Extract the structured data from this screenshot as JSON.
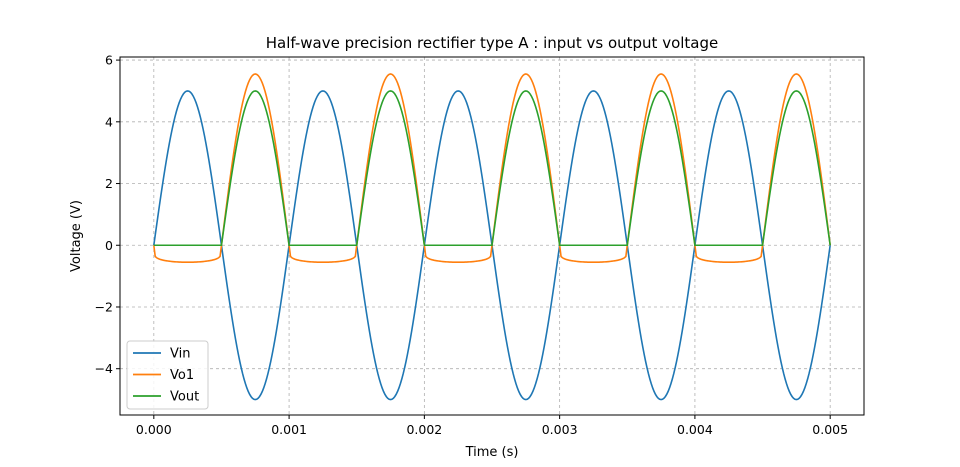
{
  "chart_data": {
    "type": "line",
    "title": "Half-wave precision rectifier type A : input vs output voltage",
    "xlabel": "Time (s)",
    "ylabel": "Voltage (V)",
    "xlim": [
      -0.00025,
      0.00525
    ],
    "ylim": [
      -5.5,
      6.1
    ],
    "grid": true,
    "legend_position": "lower-left",
    "x_ticks": [
      0.0,
      0.001,
      0.002,
      0.003,
      0.004,
      0.005
    ],
    "x_tick_labels": [
      "0.000",
      "0.001",
      "0.002",
      "0.003",
      "0.004",
      "0.005"
    ],
    "y_ticks": [
      -4,
      -2,
      0,
      2,
      4,
      6
    ],
    "y_tick_labels": [
      "−4",
      "−2",
      "0",
      "2",
      "4",
      "6"
    ],
    "x": [
      0.0,
      0.00025,
      0.0005,
      0.00075,
      0.001,
      0.00125,
      0.0015,
      0.00175,
      0.002,
      0.00225,
      0.0025,
      0.00275,
      0.003,
      0.00325,
      0.0035,
      0.00375,
      0.004,
      0.00425,
      0.0045,
      0.00475,
      0.005
    ],
    "series": [
      {
        "name": "Vin",
        "color": "#1f77b4",
        "values": [
          0,
          5,
          0,
          -5,
          0,
          5,
          0,
          -5,
          0,
          5,
          0,
          -5,
          0,
          5,
          0,
          -5,
          0,
          5,
          0,
          -5,
          0
        ]
      },
      {
        "name": "Vo1",
        "color": "#ff7f0e",
        "values": [
          0,
          -0.55,
          0,
          5.55,
          0,
          -0.55,
          0,
          5.55,
          0,
          -0.55,
          0,
          5.55,
          0,
          -0.55,
          0,
          5.55,
          0,
          -0.55,
          0,
          5.55,
          0
        ]
      },
      {
        "name": "Vout",
        "color": "#2ca02c",
        "values": [
          0,
          0,
          0,
          5,
          0,
          0,
          0,
          5,
          0,
          0,
          0,
          5,
          0,
          0,
          0,
          5,
          0,
          0,
          0,
          5,
          0
        ]
      }
    ]
  }
}
